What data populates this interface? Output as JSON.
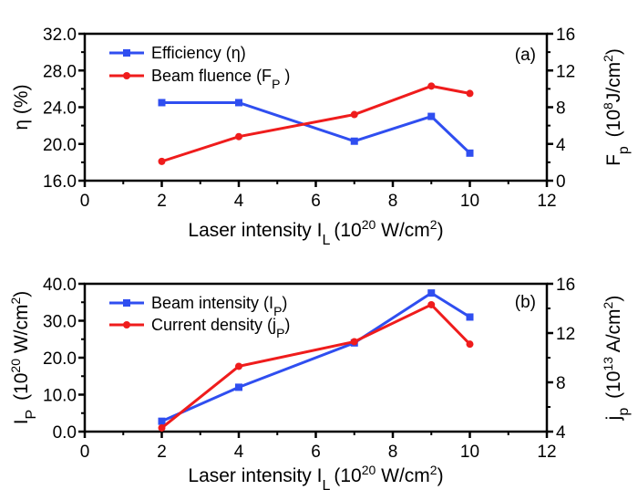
{
  "colors": {
    "blue": "#2f4ef0",
    "red": "#ef1c1c",
    "axis": "#000000"
  },
  "chart_data": [
    {
      "type": "line",
      "panel_label": "(a)",
      "x_axis": {
        "label": "Laser intensity I",
        "sub": "L",
        "unit": "(10",
        "unit_sup": "20",
        "unit2": " W/cm",
        "unit2_sup": "2",
        "unit_close": ")",
        "lim": [
          0,
          12
        ],
        "ticks": [
          "0",
          "2",
          "4",
          "6",
          "8",
          "10",
          "12"
        ]
      },
      "y_left": {
        "label": "η (%)",
        "lim": [
          16,
          32
        ],
        "ticks": [
          "16.0",
          "20.0",
          "24.0",
          "28.0",
          "32.0"
        ]
      },
      "y_right": {
        "label": "F",
        "sub": "p",
        "unit": " (10",
        "unit_sup": "8",
        "unit2": "J/cm",
        "unit2_sup": "2",
        "unit_close": ")",
        "lim": [
          0,
          16
        ],
        "ticks": [
          "0",
          "4",
          "8",
          "12",
          "16"
        ]
      },
      "series": [
        {
          "name": "Efficiency (η)",
          "axis": "left",
          "color": "#2f4ef0",
          "marker": "square",
          "x": [
            2,
            4,
            7,
            9,
            10
          ],
          "y": [
            24.5,
            24.5,
            20.3,
            23.0,
            19.0
          ]
        },
        {
          "name": "Beam fluence (F",
          "name_sub": "P",
          "name_close": " )",
          "axis": "right",
          "color": "#ef1c1c",
          "marker": "circle",
          "x": [
            2,
            4,
            7,
            9,
            10
          ],
          "y": [
            2.1,
            4.8,
            7.2,
            10.3,
            9.5
          ]
        }
      ]
    },
    {
      "type": "line",
      "panel_label": "(b)",
      "x_axis": {
        "label": "Laser intensity I",
        "sub": "L",
        "unit": "(10",
        "unit_sup": "20",
        "unit2": " W/cm",
        "unit2_sup": "2",
        "unit_close": ")",
        "lim": [
          0,
          12
        ],
        "ticks": [
          "0",
          "2",
          "4",
          "6",
          "8",
          "10",
          "12"
        ]
      },
      "y_left": {
        "label": "I",
        "sub": "P",
        "unit": " (10",
        "unit_sup": "20",
        "unit2": " W/cm",
        "unit2_sup": "2",
        "unit_close": ")",
        "lim": [
          0,
          40
        ],
        "ticks": [
          "0.0",
          "10.0",
          "20.0",
          "30.0",
          "40.0"
        ]
      },
      "y_right": {
        "label": "j",
        "sub": "p",
        "unit": " (10",
        "unit_sup": "13",
        "unit2": " A/cm",
        "unit2_sup": "2",
        "unit_close": ")",
        "lim": [
          4,
          16
        ],
        "ticks": [
          "4",
          "8",
          "12",
          "16"
        ]
      },
      "series": [
        {
          "name": "Beam intensity (I",
          "name_sub": "P",
          "name_close": ")",
          "axis": "left",
          "color": "#2f4ef0",
          "marker": "square",
          "x": [
            2,
            4,
            7,
            9,
            10
          ],
          "y": [
            2.8,
            12.0,
            24.0,
            37.5,
            31.0
          ]
        },
        {
          "name": "Current density (j",
          "name_sub": "P",
          "name_close": ")",
          "axis": "right",
          "color": "#ef1c1c",
          "marker": "circle",
          "x": [
            2,
            4,
            7,
            9,
            10
          ],
          "y": [
            4.3,
            9.3,
            11.3,
            14.3,
            11.1
          ]
        }
      ]
    }
  ]
}
